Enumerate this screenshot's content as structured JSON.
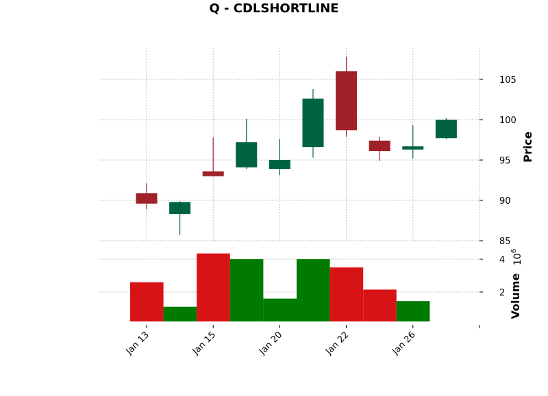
{
  "chart_data": {
    "type": "candlestick",
    "title": "Q - CDLSHORTLINE",
    "price_label": "Price",
    "volume_label": "Volume",
    "volume_exponent_base": "10",
    "volume_exponent_power": "6",
    "colors": {
      "up": "#006340",
      "down": "#A02128",
      "volume_up": "#007A00",
      "volume_down": "#D71316",
      "grid": "#b0b0b0"
    },
    "grid": true,
    "price_ylim": [
      85,
      108
    ],
    "price_ticks": [
      85,
      90,
      95,
      100,
      105
    ],
    "volume_ylim": [
      0,
      4.3
    ],
    "volume_ticks": [
      2,
      4
    ],
    "x_ticks": [
      {
        "index": 0,
        "label": "Jan 13"
      },
      {
        "index": 2,
        "label": "Jan 15"
      },
      {
        "index": 4,
        "label": "Jan 20"
      },
      {
        "index": 6,
        "label": "Jan 22"
      },
      {
        "index": 8,
        "label": "Jan 26"
      },
      {
        "index": 10,
        "label": ""
      }
    ],
    "candles": [
      {
        "open": 90.9,
        "high": 92.1,
        "low": 88.9,
        "close": 89.6,
        "volume": 2.6
      },
      {
        "open": 88.3,
        "high": 89.9,
        "low": 85.7,
        "close": 89.8,
        "volume": 1.1
      },
      {
        "open": 93.6,
        "high": 97.8,
        "low": 93.0,
        "close": 93.0,
        "volume": 4.35
      },
      {
        "open": 94.1,
        "high": 100.1,
        "low": 93.9,
        "close": 97.2,
        "volume": 4.0
      },
      {
        "open": 93.9,
        "high": 97.6,
        "low": 93.1,
        "close": 95.0,
        "volume": 1.6
      },
      {
        "open": 96.6,
        "high": 103.8,
        "low": 95.3,
        "close": 102.6,
        "volume": 4.0
      },
      {
        "open": 106.0,
        "high": 107.8,
        "low": 97.9,
        "close": 98.7,
        "volume": 3.5
      },
      {
        "open": 97.4,
        "high": 97.9,
        "low": 94.9,
        "close": 96.1,
        "volume": 2.15
      },
      {
        "open": 96.3,
        "high": 99.3,
        "low": 95.2,
        "close": 96.7,
        "volume": 1.45
      },
      {
        "open": 97.7,
        "high": 100.2,
        "low": 97.6,
        "close": 100.0,
        "volume": 0.15
      }
    ]
  }
}
